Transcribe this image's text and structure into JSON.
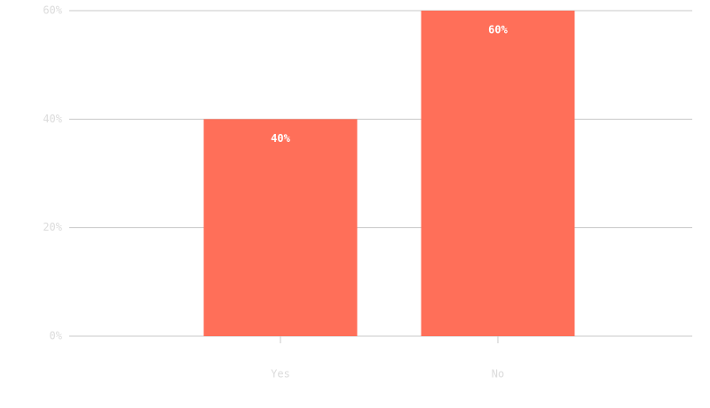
{
  "chart_data": {
    "type": "bar",
    "categories": [
      "Yes",
      "No"
    ],
    "values": [
      40,
      60
    ],
    "value_labels": [
      "40%",
      "60%"
    ],
    "color": "#ff6f59",
    "ylim": [
      0,
      60
    ],
    "yticks": [
      {
        "value": 0,
        "label": "0%"
      },
      {
        "value": 20,
        "label": "20%"
      },
      {
        "value": 40,
        "label": "40%"
      },
      {
        "value": 60,
        "label": "60%"
      }
    ],
    "grid": true
  }
}
